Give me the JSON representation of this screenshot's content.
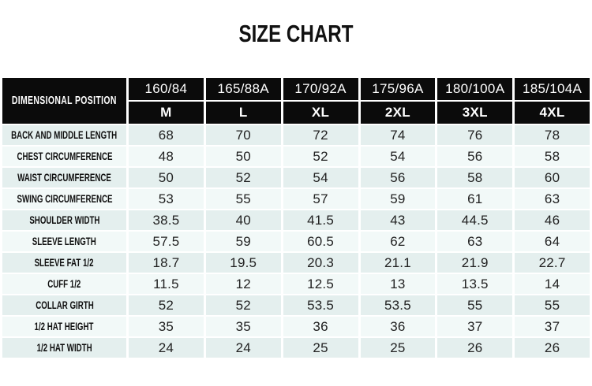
{
  "title": "SIZE CHART",
  "table": {
    "corner_label": "DIMENSIONAL POSITION",
    "size_codes": [
      "160/84",
      "165/88A",
      "170/92A",
      "175/96A",
      "180/100A",
      "185/104A"
    ],
    "size_labels": [
      "M",
      "L",
      "XL",
      "2XL",
      "3XL",
      "4XL"
    ],
    "rows": [
      {
        "label": "BACK AND MIDDLE LENGTH",
        "values": [
          "68",
          "70",
          "72",
          "74",
          "76",
          "78"
        ]
      },
      {
        "label": "CHEST CIRCUMFERENCE",
        "values": [
          "48",
          "50",
          "52",
          "54",
          "56",
          "58"
        ]
      },
      {
        "label": "WAIST CIRCUMFERENCE",
        "values": [
          "50",
          "52",
          "54",
          "56",
          "58",
          "60"
        ]
      },
      {
        "label": "SWING CIRCUMFERENCE",
        "values": [
          "53",
          "55",
          "57",
          "59",
          "61",
          "63"
        ]
      },
      {
        "label": "SHOULDER WIDTH",
        "values": [
          "38.5",
          "40",
          "41.5",
          "43",
          "44.5",
          "46"
        ]
      },
      {
        "label": "SLEEVE LENGTH",
        "values": [
          "57.5",
          "59",
          "60.5",
          "62",
          "63",
          "64"
        ]
      },
      {
        "label": "SLEEVE FAT 1/2",
        "values": [
          "18.7",
          "19.5",
          "20.3",
          "21.1",
          "21.9",
          "22.7"
        ]
      },
      {
        "label": "CUFF 1/2",
        "values": [
          "11.5",
          "12",
          "12.5",
          "13",
          "13.5",
          "14"
        ]
      },
      {
        "label": "COLLAR GIRTH",
        "values": [
          "52",
          "52",
          "53.5",
          "53.5",
          "55",
          "55"
        ]
      },
      {
        "label": "1/2 HAT HEIGHT",
        "values": [
          "35",
          "35",
          "36",
          "36",
          "37",
          "37"
        ]
      },
      {
        "label": "1/2 HAT WIDTH",
        "values": [
          "24",
          "24",
          "25",
          "25",
          "26",
          "26"
        ]
      }
    ]
  },
  "colors": {
    "header_background": "#0b0b0b",
    "header_text": "#ffffff",
    "row_dark": "#e4efee",
    "row_light": "#f2f9f8",
    "value_text": "#222222",
    "page_background": "#ffffff"
  },
  "chart_data": {
    "type": "table",
    "title": "SIZE CHART",
    "corner_header": "DIMENSIONAL POSITION",
    "column_headers_row1": [
      "160/84",
      "165/88A",
      "170/92A",
      "175/96A",
      "180/100A",
      "185/104A"
    ],
    "column_headers_row2": [
      "M",
      "L",
      "XL",
      "2XL",
      "3XL",
      "4XL"
    ],
    "row_headers": [
      "BACK AND MIDDLE LENGTH",
      "CHEST CIRCUMFERENCE",
      "WAIST CIRCUMFERENCE",
      "SWING CIRCUMFERENCE",
      "SHOULDER WIDTH",
      "SLEEVE LENGTH",
      "SLEEVE FAT 1/2",
      "CUFF 1/2",
      "COLLAR GIRTH",
      "1/2 HAT HEIGHT",
      "1/2 HAT WIDTH"
    ],
    "values": [
      [
        68,
        70,
        72,
        74,
        76,
        78
      ],
      [
        48,
        50,
        52,
        54,
        56,
        58
      ],
      [
        50,
        52,
        54,
        56,
        58,
        60
      ],
      [
        53,
        55,
        57,
        59,
        61,
        63
      ],
      [
        38.5,
        40,
        41.5,
        43,
        44.5,
        46
      ],
      [
        57.5,
        59,
        60.5,
        62,
        63,
        64
      ],
      [
        18.7,
        19.5,
        20.3,
        21.1,
        21.9,
        22.7
      ],
      [
        11.5,
        12,
        12.5,
        13,
        13.5,
        14
      ],
      [
        52,
        52,
        53.5,
        53.5,
        55,
        55
      ],
      [
        35,
        35,
        36,
        36,
        37,
        37
      ],
      [
        24,
        24,
        25,
        25,
        26,
        26
      ]
    ]
  }
}
